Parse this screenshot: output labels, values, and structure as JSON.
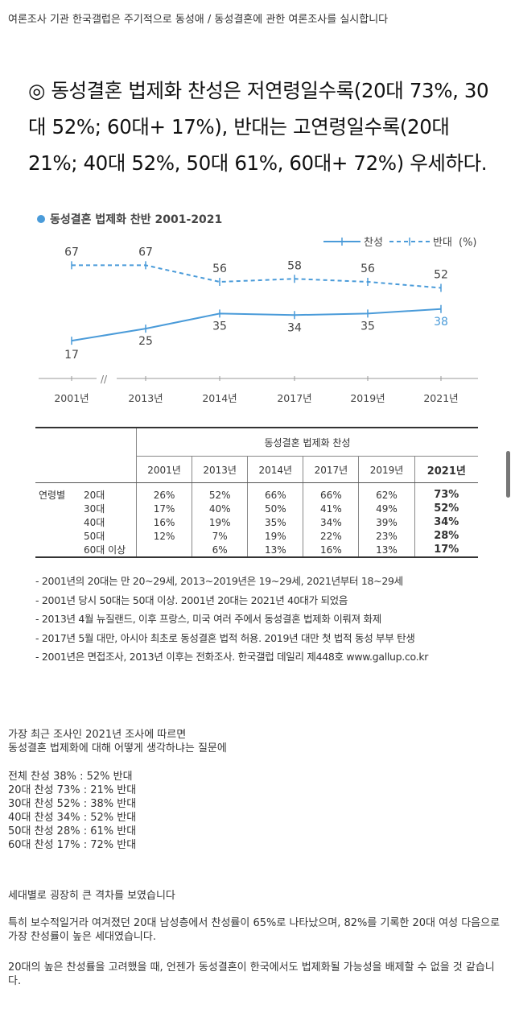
{
  "intro": "여론조사 기관 한국갤럽은 주기적으로 동성애 / 동성결혼에 관한 여론조사를 실시합니다",
  "headline": "◎ 동성결혼 법제화 찬성은 저연령일수록(20대 73%, 30대 52%; 60대+ 17%), 반대는 고연령일수록(20대 21%; 40대 52%, 50대 61%, 60대+ 72%) 우세하다.",
  "chart_data": {
    "type": "line",
    "title": "동성결혼 법제화 찬반 2001-2021",
    "legend": {
      "placement": "top-right",
      "unit": "(%)"
    },
    "categories": [
      "2001년",
      "2013년",
      "2014년",
      "2017년",
      "2019년",
      "2021년"
    ],
    "axis_break": "//",
    "series": [
      {
        "name": "찬성",
        "style": "solid",
        "color": "#4a9bd9",
        "values": [
          17,
          25,
          35,
          34,
          35,
          38
        ]
      },
      {
        "name": "반대",
        "style": "dashed",
        "color": "#4a9bd9",
        "values": [
          67,
          67,
          56,
          58,
          56,
          52
        ]
      }
    ],
    "ylim": [
      0,
      80
    ],
    "grid": false
  },
  "table": {
    "header": "동성결혼 법제화 찬성",
    "years": [
      "2001년",
      "2013년",
      "2014년",
      "2017년",
      "2019년",
      "2021년"
    ],
    "group_label": "연령별",
    "rows": [
      {
        "age": "20대",
        "values": [
          "26%",
          "52%",
          "66%",
          "66%",
          "62%",
          "73%"
        ]
      },
      {
        "age": "30대",
        "values": [
          "17%",
          "40%",
          "50%",
          "41%",
          "49%",
          "52%"
        ]
      },
      {
        "age": "40대",
        "values": [
          "16%",
          "19%",
          "35%",
          "34%",
          "39%",
          "34%"
        ]
      },
      {
        "age": "50대",
        "values": [
          "12%",
          "7%",
          "19%",
          "22%",
          "23%",
          "28%"
        ]
      },
      {
        "age": "60대 이상",
        "values": [
          "",
          "6%",
          "13%",
          "16%",
          "13%",
          "17%"
        ]
      }
    ]
  },
  "notes": [
    "- 2001년의 20대는 만 20~29세, 2013~2019년은 19~29세, 2021년부터 18~29세",
    "- 2001년 당시 50대는 50대 이상. 2001년 20대는 2021년 40대가 되었음",
    "- 2013년 4월 뉴질랜드, 이후 프랑스, 미국 여러 주에서 동성결혼 법제화 이뤄져 화제",
    "- 2017년 5월 대만, 아시아 최초로 동성결혼 법적 허용. 2019년 대만 첫 법적 동성 부부 탄생",
    "- 2001년은 면접조사, 2013년 이후는 전화조사. 한국갤럽 데일리 제448호 www.gallup.co.kr"
  ],
  "body": {
    "p1": [
      "가장 최근 조사인 2021년 조사에 따르면",
      "동성결혼 법제화에 대해 어떻게 생각하냐는 질문에"
    ],
    "stats": [
      "전체 찬성 38% : 52% 반대",
      "20대 찬성 73% : 21% 반대",
      "30대 찬성 52% : 38% 반대",
      "40대 찬성 34% : 52% 반대",
      "50대 찬성 28% : 61% 반대",
      "60대 찬성 17% : 72% 반대"
    ],
    "p2": "세대별로 굉장히 큰 격차를 보였습니다",
    "p3": "특히 보수적일거라 여겨졌던 20대 남성층에서 찬성률이 65%로 나타났으며, 82%를 기록한 20대 여성 다음으로 가장 찬성률이 높은 세대였습니다.",
    "p4": "20대의 높은 찬성률을 고려했을 때, 언젠가 동성결혼이 한국에서도 법제화될 가능성을 배제할 수 없을 것 같습니다."
  }
}
